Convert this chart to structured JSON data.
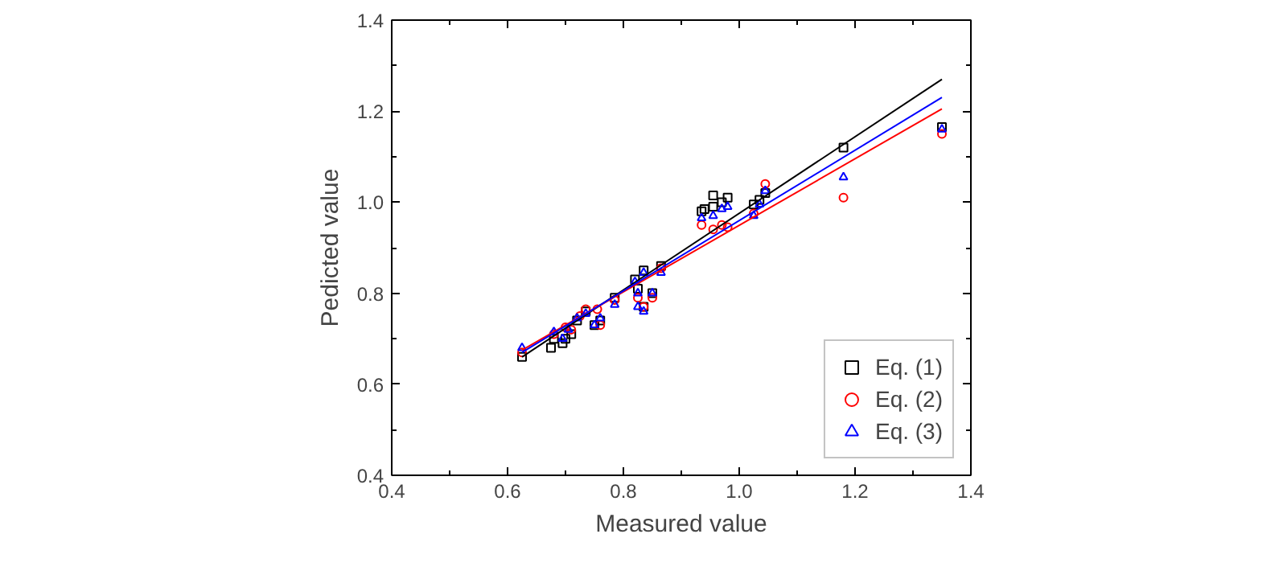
{
  "chart_data": {
    "type": "scatter",
    "xlabel": "Measured value",
    "ylabel": "Pedicted value",
    "xlim": [
      0.4,
      1.4
    ],
    "ylim": [
      0.4,
      1.4
    ],
    "xticks": [
      0.4,
      0.6,
      0.8,
      {
        "value": 1,
        "label": "1.0"
      },
      1.2,
      1.4
    ],
    "yticks": [
      0.4,
      0.6,
      0.8,
      {
        "value": 1,
        "label": "1.0"
      },
      1.2,
      1.4
    ],
    "grid": false,
    "legend": "bottom right",
    "series": [
      {
        "name": "Eq. (1)",
        "marker": "square",
        "color": "#000000",
        "x": [
          0.625,
          0.675,
          0.68,
          0.695,
          0.7,
          0.71,
          0.72,
          0.735,
          0.75,
          0.76,
          0.785,
          0.82,
          0.825,
          0.835,
          0.835,
          0.85,
          0.865,
          0.935,
          0.94,
          0.955,
          0.955,
          0.97,
          0.98,
          1.025,
          1.035,
          1.045,
          1.18,
          1.35
        ],
        "values": [
          0.66,
          0.68,
          0.7,
          0.69,
          0.7,
          0.71,
          0.74,
          0.76,
          0.73,
          0.74,
          0.79,
          0.83,
          0.81,
          0.85,
          0.77,
          0.8,
          0.86,
          0.98,
          0.985,
          1.015,
          0.99,
          1.0,
          1.01,
          0.995,
          1.005,
          1.02,
          1.12,
          1.165
        ]
      },
      {
        "name": "Eq. (2)",
        "marker": "circle",
        "color": "#ff0000",
        "x": [
          0.625,
          0.68,
          0.7,
          0.71,
          0.725,
          0.735,
          0.755,
          0.76,
          0.785,
          0.825,
          0.835,
          0.85,
          0.865,
          0.935,
          0.955,
          0.97,
          0.98,
          1.025,
          1.045,
          1.18,
          1.35
        ],
        "values": [
          0.67,
          0.71,
          0.725,
          0.72,
          0.75,
          0.765,
          0.765,
          0.73,
          0.785,
          0.79,
          0.77,
          0.79,
          0.855,
          0.95,
          0.94,
          0.95,
          0.945,
          0.975,
          1.04,
          1.01,
          1.15
        ]
      },
      {
        "name": "Eq. (3)",
        "marker": "triangle",
        "color": "#0000ff",
        "x": [
          0.625,
          0.68,
          0.695,
          0.705,
          0.72,
          0.735,
          0.75,
          0.76,
          0.785,
          0.82,
          0.825,
          0.825,
          0.835,
          0.835,
          0.85,
          0.865,
          0.935,
          0.955,
          0.97,
          0.98,
          1.025,
          1.035,
          1.045,
          1.18,
          1.35
        ],
        "values": [
          0.68,
          0.715,
          0.7,
          0.72,
          0.745,
          0.755,
          0.73,
          0.745,
          0.775,
          0.825,
          0.77,
          0.8,
          0.76,
          0.845,
          0.8,
          0.845,
          0.965,
          0.97,
          0.985,
          0.99,
          0.97,
          0.995,
          1.025,
          1.055,
          1.16
        ]
      },
      {
        "type": "line",
        "marker": "none",
        "color": "#000000",
        "x": [
          0.625,
          1.35
        ],
        "values": [
          0.66,
          1.27
        ]
      },
      {
        "type": "line",
        "marker": "none",
        "color": "#ff0000",
        "x": [
          0.625,
          1.35
        ],
        "values": [
          0.675,
          1.205
        ]
      },
      {
        "type": "line",
        "marker": "none",
        "color": "#0000ff",
        "x": [
          0.625,
          1.35
        ],
        "values": [
          0.67,
          1.23
        ]
      }
    ]
  }
}
